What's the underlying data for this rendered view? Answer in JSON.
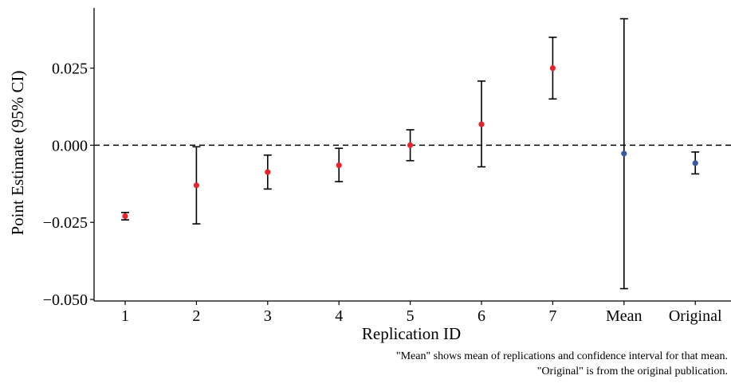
{
  "chart_data": {
    "type": "scatter",
    "subtype": "point-estimates-with-error-bars",
    "title": "",
    "xlabel": "Replication ID",
    "ylabel": "Point Estimate (95% CI)",
    "categories": [
      "1",
      "2",
      "3",
      "4",
      "5",
      "6",
      "7",
      "Mean",
      "Original"
    ],
    "series": [
      {
        "color": "#e8242a",
        "points": [
          {
            "x": "1",
            "y": -0.023,
            "lower": -0.0242,
            "upper": -0.0218
          },
          {
            "x": "2",
            "y": -0.013,
            "lower": -0.0255,
            "upper": -0.0005
          },
          {
            "x": "3",
            "y": -0.0087,
            "lower": -0.0142,
            "upper": -0.0032
          },
          {
            "x": "4",
            "y": -0.0065,
            "lower": -0.0118,
            "upper": -0.001
          },
          {
            "x": "5",
            "y": 0.0,
            "lower": -0.005,
            "upper": 0.005
          },
          {
            "x": "6",
            "y": 0.0068,
            "lower": -0.007,
            "upper": 0.0208
          },
          {
            "x": "7",
            "y": 0.025,
            "lower": 0.015,
            "upper": 0.035
          }
        ]
      },
      {
        "color": "#3a58a8",
        "points": [
          {
            "x": "Mean",
            "y": -0.0027,
            "lower": -0.0465,
            "upper": 0.041
          },
          {
            "x": "Original",
            "y": -0.0058,
            "lower": -0.0093,
            "upper": -0.0022
          }
        ]
      }
    ],
    "ylim": [
      -0.0505,
      0.0445
    ],
    "yticks": [
      -0.05,
      -0.025,
      0.0,
      0.025
    ],
    "ytick_labels": [
      "−0.050",
      "−0.025",
      "0.000",
      "0.025"
    ],
    "reference_line": {
      "y": 0.0,
      "style": "dashed"
    },
    "grid": false,
    "legend": "none"
  },
  "caption": {
    "line1": "\"Mean\" shows mean of replications and confidence interval for that mean.",
    "line2": "\"Original\" is from the original publication."
  }
}
